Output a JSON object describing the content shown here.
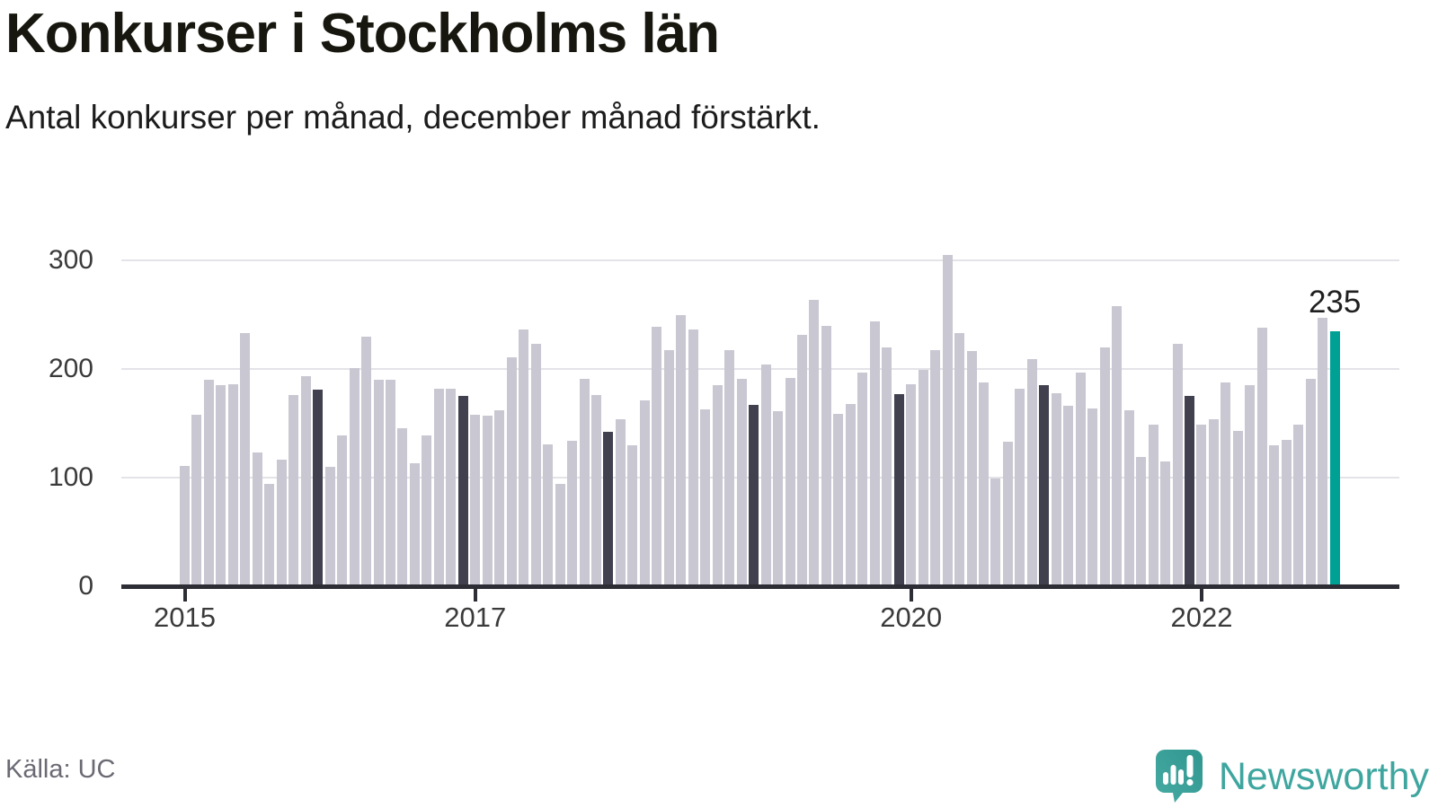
{
  "header": {
    "title": "Konkurser i Stockholms län",
    "subtitle": "Antal konkurser per månad, december månad förstärkt."
  },
  "footer": {
    "source": "Källa: UC",
    "branding": "Newsworthy"
  },
  "colors": {
    "bar_default": "#c9c7d1",
    "bar_december": "#40404f",
    "bar_highlight": "#00a094",
    "axis": "#2d2d36",
    "grid": "#e4e3e8",
    "tick_text": "#3a3a3a",
    "muted_text": "#6a6a74",
    "logo_teal": "#3ea69f"
  },
  "chart_data": {
    "type": "bar",
    "title": "Konkurser i Stockholms län",
    "xlabel": "",
    "ylabel": "Antal konkurser per månad",
    "ylim": [
      0,
      310
    ],
    "y_ticks": [
      0,
      100,
      200,
      300
    ],
    "grid": true,
    "x_ticks": [
      {
        "label": "2015",
        "month_index": 0
      },
      {
        "label": "2017",
        "month_index": 24
      },
      {
        "label": "2020",
        "month_index": 60
      },
      {
        "label": "2022",
        "month_index": 84
      }
    ],
    "highlight_rule": "december bars drawn darker; final bar (Dec 2022) teal with value label",
    "last_bar_label": "235",
    "series": [
      {
        "year": 2015,
        "values": [
          111,
          158,
          190,
          185,
          186,
          233,
          123,
          94,
          117,
          176,
          194,
          181
        ]
      },
      {
        "year": 2016,
        "values": [
          110,
          139,
          201,
          230,
          190,
          190,
          146,
          113,
          139,
          182,
          182,
          175
        ]
      },
      {
        "year": 2017,
        "values": [
          158,
          157,
          162,
          211,
          237,
          223,
          131,
          94,
          134,
          191,
          176,
          142
        ]
      },
      {
        "year": 2018,
        "values": [
          154,
          130,
          171,
          239,
          218,
          250,
          237,
          163,
          185,
          218,
          191,
          167
        ]
      },
      {
        "year": 2019,
        "values": [
          204,
          161,
          192,
          232,
          264,
          240,
          159,
          168,
          197,
          244,
          220,
          177
        ]
      },
      {
        "year": 2020,
        "values": [
          186,
          199,
          218,
          305,
          233,
          217,
          188,
          99,
          133,
          182,
          209,
          185
        ]
      },
      {
        "year": 2021,
        "values": [
          178,
          166,
          197,
          164,
          220,
          258,
          162,
          119,
          149,
          115,
          223,
          175
        ]
      },
      {
        "year": 2022,
        "values": [
          149,
          154,
          188,
          143,
          185,
          238,
          130,
          135,
          149,
          191,
          247,
          235
        ]
      }
    ]
  }
}
